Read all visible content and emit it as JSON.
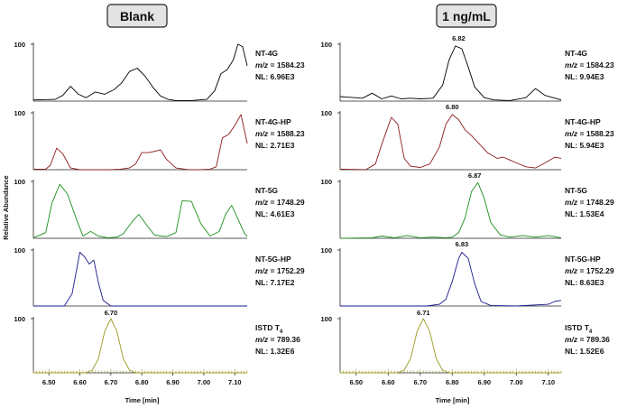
{
  "chart_data": {
    "type": "line",
    "ylabel": "Relative Abundance",
    "xlabel": "Time [min]",
    "x_ticks": [
      "6.50",
      "6.60",
      "6.70",
      "6.80",
      "6.90",
      "7.00",
      "7.10"
    ],
    "xlim": [
      6.45,
      7.14
    ],
    "ylim": [
      0,
      100
    ],
    "y_tick_label": "100",
    "columns": [
      {
        "title": "Blank",
        "panels": [
          {
            "name": "NT-4G",
            "mz": "1584.23",
            "nl": "6.96E3",
            "color": "#000000",
            "peak_label": "",
            "x": [
              6.45,
              6.52,
              6.545,
              6.57,
              6.595,
              6.62,
              6.65,
              6.68,
              6.71,
              6.735,
              6.76,
              6.785,
              6.81,
              6.835,
              6.86,
              6.885,
              6.91,
              6.935,
              6.96,
              6.985,
              7.01,
              7.035,
              7.055,
              7.075,
              7.095,
              7.11,
              7.125,
              7.14
            ],
            "y": [
              2,
              3,
              10,
              26,
              12,
              6,
              16,
              12,
              20,
              32,
              52,
              58,
              44,
              25,
              9,
              3,
              1,
              1,
              1,
              2,
              3,
              18,
              48,
              55,
              72,
              100,
              96,
              62
            ]
          },
          {
            "name": "NT-4G-HP",
            "mz": "1588.23",
            "nl": "2.71E3",
            "color": "#8b1a1a",
            "peak_label": "",
            "x": [
              6.45,
              6.49,
              6.505,
              6.525,
              6.545,
              6.57,
              6.6,
              6.65,
              6.7,
              6.73,
              6.76,
              6.78,
              6.8,
              6.82,
              6.84,
              6.86,
              6.88,
              6.91,
              6.95,
              6.99,
              7.02,
              7.04,
              7.06,
              7.08,
              7.1,
              7.12,
              7.14
            ],
            "y": [
              1,
              1,
              8,
              38,
              28,
              3,
              0,
              0,
              0,
              1,
              3,
              10,
              30,
              30,
              32,
              35,
              18,
              3,
              0,
              0,
              1,
              5,
              56,
              62,
              78,
              97,
              46
            ]
          },
          {
            "name": "NT-5G",
            "mz": "1748.29",
            "nl": "4.61E3",
            "color": "#1a8f1a",
            "peak_label": "",
            "x": [
              6.45,
              6.49,
              6.51,
              6.535,
              6.56,
              6.59,
              6.61,
              6.635,
              6.66,
              6.69,
              6.72,
              6.74,
              6.77,
              6.79,
              6.82,
              6.84,
              6.86,
              6.88,
              6.91,
              6.93,
              6.96,
              6.99,
              7.02,
              7.05,
              7.07,
              7.09,
              7.11,
              7.13,
              7.14
            ],
            "y": [
              1,
              10,
              62,
              95,
              78,
              32,
              4,
              12,
              4,
              1,
              2,
              8,
              30,
              42,
              20,
              6,
              4,
              3,
              10,
              66,
              65,
              26,
              4,
              12,
              42,
              58,
              34,
              10,
              3
            ]
          },
          {
            "name": "NT-5G-HP",
            "mz": "1752.29",
            "nl": "7.17E2",
            "color": "#1a1a8f",
            "peak_label": "",
            "x": [
              6.45,
              6.55,
              6.575,
              6.6,
              6.615,
              6.63,
              6.645,
              6.66,
              6.675,
              6.7,
              6.75,
              6.8,
              6.9,
              7.0,
              7.14
            ],
            "y": [
              0,
              0,
              22,
              96,
              88,
              75,
              82,
              42,
              10,
              0,
              0,
              0,
              0,
              0,
              0
            ]
          },
          {
            "name": "ISTD T",
            "subscript": "4",
            "mz": "789.36",
            "nl": "1.32E6",
            "color": "#9a9a20",
            "peak_label": "6.70",
            "x": [
              6.45,
              6.62,
              6.64,
              6.66,
              6.68,
              6.7,
              6.72,
              6.74,
              6.76,
              6.78,
              7.14
            ],
            "y": [
              0,
              0,
              5,
              26,
              76,
              100,
              76,
              26,
              5,
              0,
              0
            ]
          }
        ]
      },
      {
        "title": "1 ng/mL",
        "panels": [
          {
            "name": "NT-4G",
            "mz": "1584.23",
            "nl": "9.94E3",
            "color": "#000000",
            "peak_label": "6.82",
            "x": [
              6.45,
              6.52,
              6.55,
              6.58,
              6.61,
              6.64,
              6.67,
              6.7,
              6.74,
              6.77,
              6.79,
              6.81,
              6.83,
              6.85,
              6.87,
              6.9,
              6.93,
              6.98,
              7.03,
              7.06,
              7.09,
              7.14
            ],
            "y": [
              8,
              5,
              14,
              4,
              9,
              4,
              5,
              4,
              5,
              28,
              72,
              97,
              92,
              60,
              25,
              6,
              2,
              1,
              6,
              22,
              10,
              2
            ]
          },
          {
            "name": "NT-4G-HP",
            "mz": "1588.23",
            "nl": "5.94E3",
            "color": "#8b1a1a",
            "peak_label": "6.80",
            "x": [
              6.45,
              6.53,
              6.56,
              6.58,
              6.61,
              6.63,
              6.65,
              6.67,
              6.7,
              6.73,
              6.76,
              6.78,
              6.8,
              6.82,
              6.84,
              6.86,
              6.88,
              6.91,
              6.94,
              6.96,
              6.98,
              7.0,
              7.03,
              7.06,
              7.09,
              7.12,
              7.14
            ],
            "y": [
              1,
              0,
              10,
              45,
              92,
              80,
              20,
              6,
              4,
              10,
              40,
              80,
              97,
              88,
              70,
              60,
              48,
              30,
              20,
              22,
              17,
              12,
              5,
              3,
              12,
              22,
              20
            ]
          },
          {
            "name": "NT-5G",
            "mz": "1748.29",
            "nl": "1.53E4",
            "color": "#1a8f1a",
            "peak_label": "6.87",
            "x": [
              6.45,
              6.55,
              6.58,
              6.62,
              6.66,
              6.7,
              6.74,
              6.78,
              6.8,
              6.82,
              6.84,
              6.86,
              6.88,
              6.9,
              6.92,
              6.95,
              6.98,
              7.02,
              7.06,
              7.1,
              7.14
            ],
            "y": [
              0,
              1,
              4,
              1,
              5,
              1,
              2,
              1,
              2,
              10,
              36,
              82,
              98,
              70,
              28,
              6,
              2,
              5,
              2,
              5,
              1
            ]
          },
          {
            "name": "NT-5G-HP",
            "mz": "1752.29",
            "nl": "8.63E3",
            "color": "#1a1a8f",
            "peak_label": "6.83",
            "x": [
              6.45,
              6.72,
              6.76,
              6.78,
              6.8,
              6.82,
              6.83,
              6.85,
              6.87,
              6.89,
              6.92,
              7.0,
              7.1,
              7.12,
              7.14
            ],
            "y": [
              0,
              0,
              3,
              12,
              44,
              85,
              96,
              85,
              40,
              8,
              1,
              0,
              3,
              8,
              10
            ]
          },
          {
            "name": "ISTD T",
            "subscript": "4",
            "mz": "789.36",
            "nl": "1.52E6",
            "color": "#9a9a20",
            "peak_label": "6.71",
            "x": [
              6.45,
              6.63,
              6.65,
              6.67,
              6.69,
              6.71,
              6.73,
              6.75,
              6.77,
              6.79,
              7.14
            ],
            "y": [
              0,
              0,
              5,
              26,
              76,
              100,
              76,
              26,
              5,
              0,
              0
            ]
          }
        ]
      }
    ]
  }
}
